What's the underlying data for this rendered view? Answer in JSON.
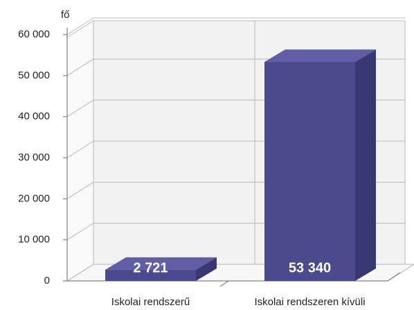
{
  "chart_data": {
    "type": "bar3d",
    "y_unit_label": "fő",
    "categories": [
      "Iskolai rendszerű",
      "Iskolai rendszeren kívüli"
    ],
    "values": [
      2721,
      53340
    ],
    "value_labels": [
      "2 721",
      "53 340"
    ],
    "color": "#4b4a8c",
    "ylim": [
      0,
      60000
    ],
    "yticks": [
      0,
      {
        "value": 10000,
        "label": "10 000"
      },
      {
        "value": 20000,
        "label": "20 000"
      },
      {
        "value": 30000,
        "label": "30 000"
      },
      {
        "value": 40000,
        "label": "40 000"
      },
      {
        "value": 50000,
        "label": "50 000"
      },
      {
        "value": 60000,
        "label": "60 000"
      }
    ],
    "grid": true
  }
}
